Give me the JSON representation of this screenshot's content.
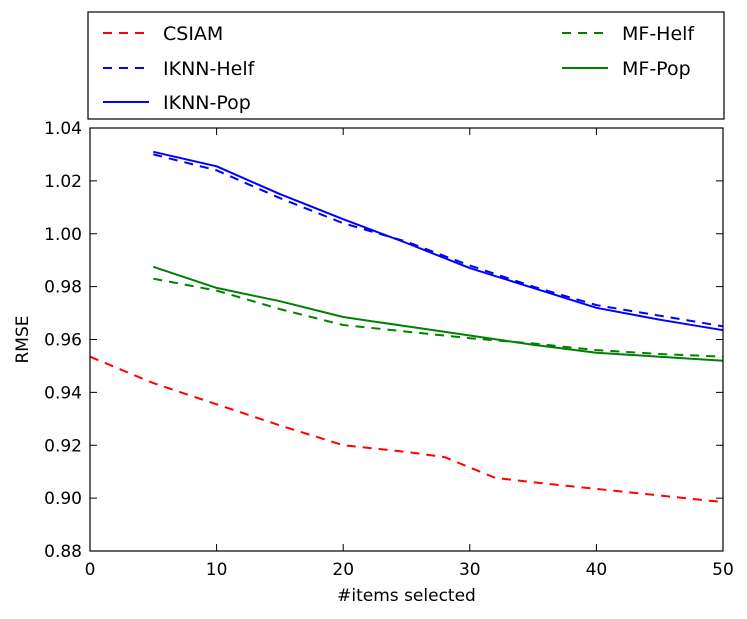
{
  "chart_data": {
    "type": "line",
    "title": "",
    "xlabel": "#items selected",
    "ylabel": "RMSE",
    "xlim": [
      0,
      50
    ],
    "ylim": [
      0.88,
      1.04
    ],
    "x_ticks": [
      0,
      10,
      20,
      30,
      40,
      50
    ],
    "x_tick_labels": [
      "0",
      "10",
      "20",
      "30",
      "40",
      "50"
    ],
    "y_ticks": [
      0.88,
      0.9,
      0.92,
      0.94,
      0.96,
      0.98,
      1.0,
      1.02,
      1.04
    ],
    "y_tick_labels": [
      "0.88",
      "0.90",
      "0.92",
      "0.94",
      "0.96",
      "0.98",
      "1.00",
      "1.02",
      "1.04"
    ],
    "grid": false,
    "legend_position": "top, above plot",
    "series": [
      {
        "name": "CSIAM",
        "color": "#ff0000",
        "style": "dashed",
        "x": [
          0,
          5,
          10,
          15,
          20,
          25,
          28,
          32,
          35,
          40,
          45,
          50
        ],
        "y": [
          0.9535,
          0.9435,
          0.9355,
          0.9275,
          0.92,
          0.9175,
          0.9155,
          0.9077,
          0.906,
          0.9035,
          0.901,
          0.8985
        ]
      },
      {
        "name": "IKNN-Helf",
        "color": "#0000ff",
        "style": "dashed",
        "x": [
          5,
          10,
          15,
          20,
          25,
          30,
          35,
          40,
          45,
          50
        ],
        "y": [
          1.03,
          1.024,
          1.0135,
          1.004,
          0.997,
          0.988,
          0.98,
          0.973,
          0.969,
          0.965
        ]
      },
      {
        "name": "IKNN-Pop",
        "color": "#0000ff",
        "style": "solid",
        "x": [
          5,
          10,
          15,
          20,
          25,
          30,
          35,
          40,
          45,
          50
        ],
        "y": [
          1.031,
          1.0255,
          1.015,
          1.0055,
          0.9965,
          0.987,
          0.9795,
          0.972,
          0.9675,
          0.9635
        ]
      },
      {
        "name": "MF-Helf",
        "color": "#008000",
        "style": "dashed",
        "x": [
          5,
          10,
          15,
          20,
          25,
          30,
          35,
          40,
          45,
          50
        ],
        "y": [
          0.983,
          0.9785,
          0.9715,
          0.9655,
          0.963,
          0.9605,
          0.9585,
          0.956,
          0.9545,
          0.9535
        ]
      },
      {
        "name": "MF-Pop",
        "color": "#008000",
        "style": "solid",
        "x": [
          5,
          10,
          15,
          20,
          25,
          30,
          35,
          40,
          45,
          50
        ],
        "y": [
          0.9875,
          0.9795,
          0.9745,
          0.9685,
          0.965,
          0.9615,
          0.958,
          0.955,
          0.9535,
          0.952
        ]
      }
    ]
  }
}
